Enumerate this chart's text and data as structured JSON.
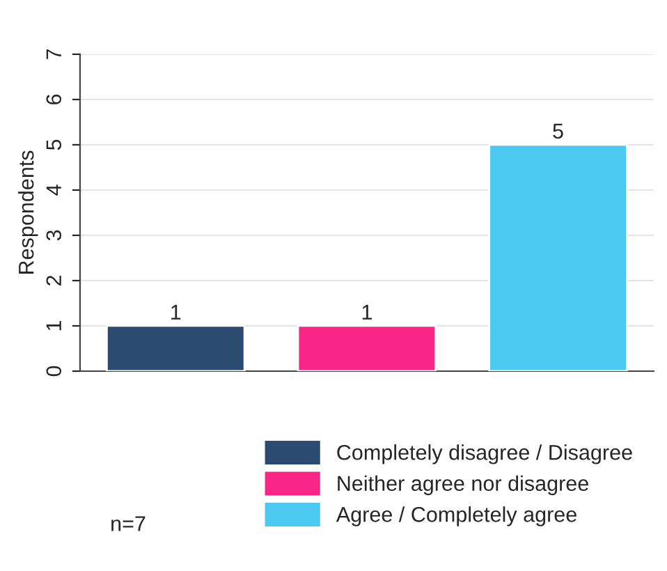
{
  "chart_data": {
    "type": "bar",
    "ylabel": "Respondents",
    "categories": [
      null,
      null,
      null
    ],
    "series": [
      {
        "name": "Completely disagree / Disagree",
        "color": "#2c4b70",
        "values": [
          1,
          null,
          null
        ]
      },
      {
        "name": "Neither agree nor disagree",
        "color": "#f72585",
        "values": [
          null,
          1,
          null
        ]
      },
      {
        "name": "Agree / Completely agree",
        "color": "#4cc9f0",
        "values": [
          null,
          null,
          5
        ]
      }
    ],
    "ylim": [
      0,
      7
    ],
    "yticks": [
      0,
      1,
      2,
      3,
      4,
      5,
      6,
      7
    ],
    "grid": "y",
    "legend": "bottom",
    "data_labels": true,
    "annotations": [
      "n=7"
    ]
  }
}
